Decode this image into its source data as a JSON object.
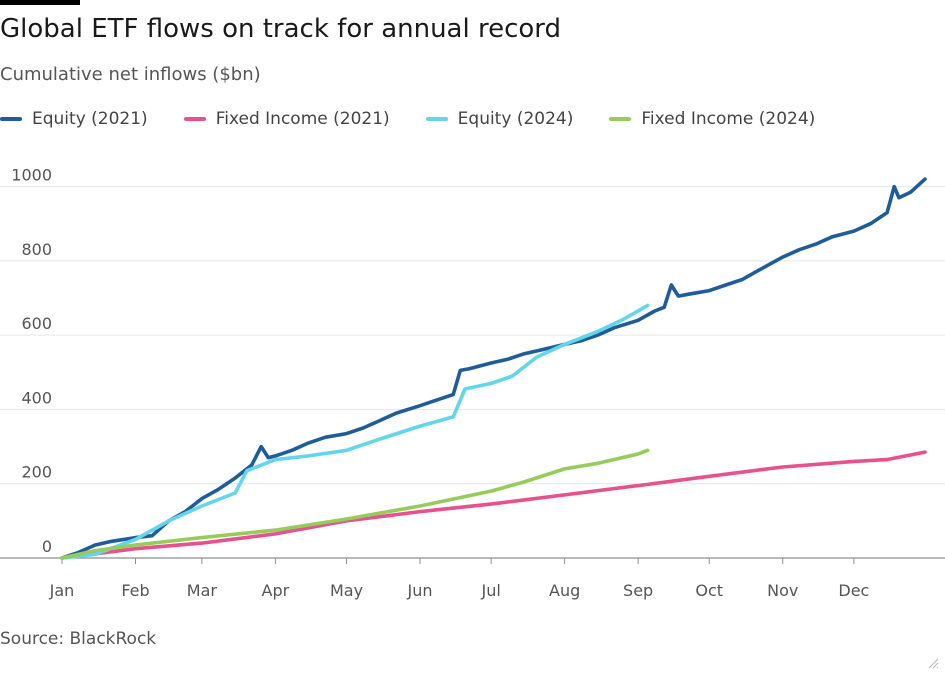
{
  "header": {
    "title": "Global ETF flows on track for annual record",
    "subtitle": "Cumulative net inflows ($bn)"
  },
  "footer": {
    "source": "Source: BlackRock"
  },
  "chart_data": {
    "type": "line",
    "title": "Global ETF flows on track for annual record",
    "subtitle": "Cumulative net inflows ($bn)",
    "xlabel": "",
    "ylabel": "",
    "x_ticks": [
      "Jan",
      "Feb",
      "Mar",
      "Apr",
      "May",
      "Jun",
      "Jul",
      "Aug",
      "Sep",
      "Oct",
      "Nov",
      "Dec"
    ],
    "y_ticks": [
      0,
      200,
      400,
      600,
      800,
      1000
    ],
    "ylim": [
      0,
      1050
    ],
    "grid": "horizontal",
    "legend_position": "top-left",
    "series": [
      {
        "name": "Equity (2021)",
        "color": "#1f5c99",
        "points": [
          [
            "Jan 1",
            0
          ],
          [
            "Jan 8",
            15
          ],
          [
            "Jan 15",
            35
          ],
          [
            "Jan 22",
            45
          ],
          [
            "Feb 1",
            55
          ],
          [
            "Feb 8",
            60
          ],
          [
            "Feb 15",
            100
          ],
          [
            "Feb 22",
            125
          ],
          [
            "Mar 1",
            160
          ],
          [
            "Mar 8",
            185
          ],
          [
            "Mar 15",
            215
          ],
          [
            "Mar 22",
            250
          ],
          [
            "Mar 26",
            300
          ],
          [
            "Mar 29",
            270
          ],
          [
            "Apr 1",
            275
          ],
          [
            "Apr 8",
            290
          ],
          [
            "Apr 15",
            310
          ],
          [
            "Apr 22",
            325
          ],
          [
            "May 1",
            335
          ],
          [
            "May 8",
            350
          ],
          [
            "May 15",
            370
          ],
          [
            "May 22",
            390
          ],
          [
            "Jun 1",
            410
          ],
          [
            "Jun 8",
            425
          ],
          [
            "Jun 15",
            440
          ],
          [
            "Jun 18",
            505
          ],
          [
            "Jun 22",
            510
          ],
          [
            "Jul 1",
            525
          ],
          [
            "Jul 8",
            535
          ],
          [
            "Jul 15",
            550
          ],
          [
            "Jul 22",
            560
          ],
          [
            "Aug 1",
            575
          ],
          [
            "Aug 8",
            585
          ],
          [
            "Aug 15",
            600
          ],
          [
            "Aug 22",
            620
          ],
          [
            "Sep 1",
            640
          ],
          [
            "Sep 8",
            665
          ],
          [
            "Sep 12",
            675
          ],
          [
            "Sep 15",
            735
          ],
          [
            "Sep 18",
            705
          ],
          [
            "Sep 22",
            710
          ],
          [
            "Oct 1",
            720
          ],
          [
            "Oct 8",
            735
          ],
          [
            "Oct 15",
            750
          ],
          [
            "Oct 22",
            775
          ],
          [
            "Nov 1",
            810
          ],
          [
            "Nov 8",
            830
          ],
          [
            "Nov 15",
            845
          ],
          [
            "Nov 22",
            865
          ],
          [
            "Dec 1",
            880
          ],
          [
            "Dec 8",
            900
          ],
          [
            "Dec 15",
            930
          ],
          [
            "Dec 18",
            1000
          ],
          [
            "Dec 20",
            970
          ],
          [
            "Dec 25",
            985
          ],
          [
            "Dec 31",
            1020
          ]
        ]
      },
      {
        "name": "Fixed Income (2021)",
        "color": "#e8508e",
        "points": [
          [
            "Jan 1",
            0
          ],
          [
            "Feb 1",
            25
          ],
          [
            "Mar 1",
            40
          ],
          [
            "Apr 1",
            65
          ],
          [
            "May 1",
            100
          ],
          [
            "Jun 1",
            125
          ],
          [
            "Jul 1",
            145
          ],
          [
            "Aug 1",
            170
          ],
          [
            "Sep 1",
            195
          ],
          [
            "Oct 1",
            220
          ],
          [
            "Nov 1",
            245
          ],
          [
            "Dec 1",
            260
          ],
          [
            "Dec 15",
            265
          ],
          [
            "Dec 31",
            285
          ]
        ]
      },
      {
        "name": "Equity (2024)",
        "color": "#64d6ea",
        "points": [
          [
            "Jan 1",
            0
          ],
          [
            "Jan 15",
            10
          ],
          [
            "Feb 1",
            50
          ],
          [
            "Feb 15",
            100
          ],
          [
            "Mar 1",
            140
          ],
          [
            "Mar 15",
            175
          ],
          [
            "Mar 20",
            235
          ],
          [
            "Apr 1",
            265
          ],
          [
            "Apr 15",
            275
          ],
          [
            "May 1",
            290
          ],
          [
            "May 15",
            320
          ],
          [
            "Jun 1",
            355
          ],
          [
            "Jun 15",
            380
          ],
          [
            "Jun 20",
            455
          ],
          [
            "Jul 1",
            470
          ],
          [
            "Jul 10",
            490
          ],
          [
            "Jul 20",
            540
          ],
          [
            "Aug 1",
            575
          ],
          [
            "Aug 15",
            610
          ],
          [
            "Aug 25",
            640
          ],
          [
            "Sep 1",
            665
          ],
          [
            "Sep 5",
            680
          ]
        ]
      },
      {
        "name": "Fixed Income (2024)",
        "color": "#96cc5c",
        "points": [
          [
            "Jan 1",
            0
          ],
          [
            "Jan 15",
            20
          ],
          [
            "Feb 1",
            35
          ],
          [
            "Mar 1",
            55
          ],
          [
            "Apr 1",
            75
          ],
          [
            "May 1",
            105
          ],
          [
            "Jun 1",
            140
          ],
          [
            "Jul 1",
            180
          ],
          [
            "Jul 15",
            205
          ],
          [
            "Aug 1",
            240
          ],
          [
            "Aug 15",
            255
          ],
          [
            "Sep 1",
            280
          ],
          [
            "Sep 5",
            290
          ]
        ]
      }
    ]
  }
}
